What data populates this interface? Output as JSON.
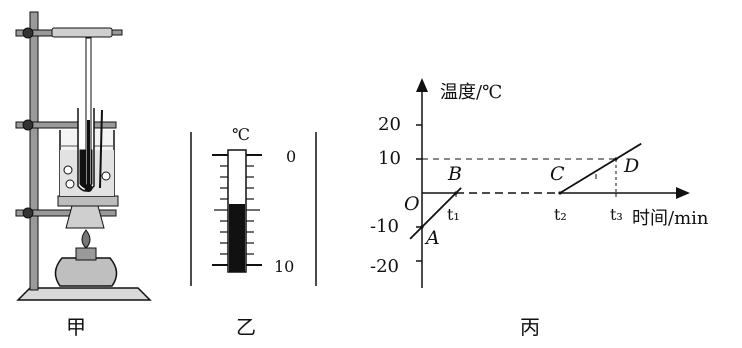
{
  "captions": {
    "jia": "甲",
    "yi": "乙",
    "bing": "丙"
  },
  "thermometer": {
    "unit": "℃",
    "tick_top": "0",
    "tick_bottom": "10"
  },
  "graph": {
    "y_axis_label": "温度/℃",
    "x_axis_label": "时间/min",
    "origin_label": "O",
    "y_ticks": [
      "20",
      "10",
      "-10",
      "-20"
    ],
    "x_ticks": [
      "t₁",
      "t₂",
      "t₃"
    ],
    "point_labels": {
      "A": "A",
      "B": "B",
      "C": "C",
      "D": "D"
    }
  },
  "chart_data": {
    "type": "line",
    "title": "",
    "xlabel": "时间/min",
    "ylabel": "温度/℃",
    "x": [
      "0",
      "t1",
      "t2",
      "t3"
    ],
    "ylim": [
      -20,
      20
    ],
    "series": [
      {
        "points": [
          [
            "0",
            -10
          ],
          [
            "t1",
            0
          ],
          [
            "t2",
            0
          ],
          [
            "t3",
            10
          ]
        ]
      }
    ],
    "point_labels": [
      "A",
      "B",
      "C",
      "D"
    ]
  }
}
